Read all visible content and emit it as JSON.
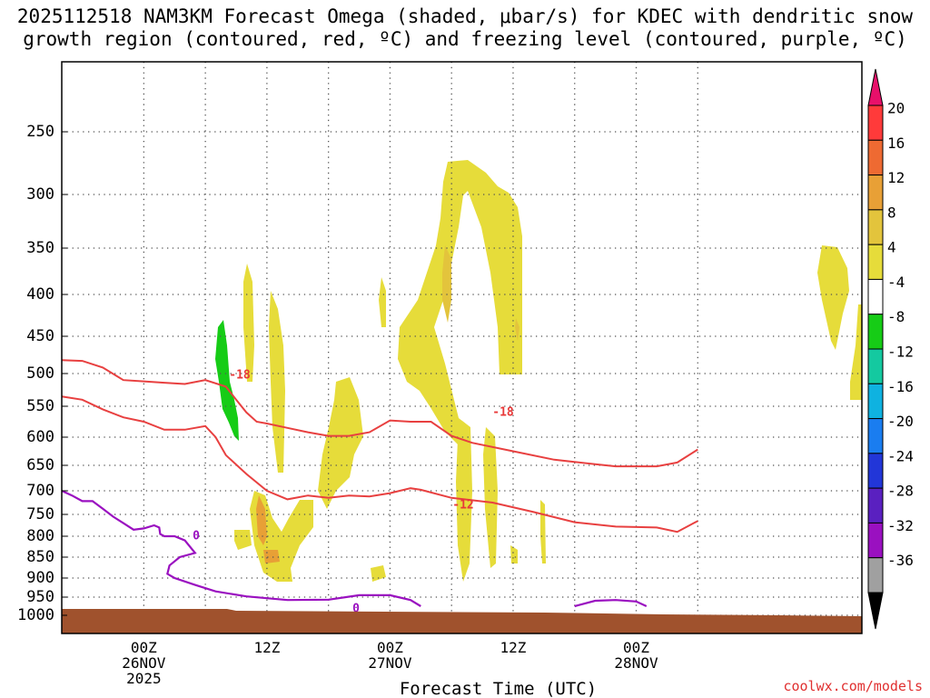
{
  "title": {
    "line1": "2025112518 NAM3KM Forecast Omega (shaded, μbar/s) for KDEC with dendritic snow",
    "line2": "growth region (contoured, red, ºC) and freezing level (contoured, purple, ºC)"
  },
  "credit": "coolwx.com/models",
  "chart_data": {
    "type": "heatmap",
    "xlabel": "Forecast Time (UTC)",
    "ylabel": "",
    "x_range_hours": [
      -8,
      70
    ],
    "y_range_hpa": [
      1030,
      200
    ],
    "x_ticks": [
      {
        "hour": 0,
        "lines": [
          "00Z",
          "26NOV",
          "2025"
        ]
      },
      {
        "hour": 12,
        "lines": [
          "12Z"
        ]
      },
      {
        "hour": 24,
        "lines": [
          "00Z",
          "27NOV"
        ]
      },
      {
        "hour": 36,
        "lines": [
          "12Z"
        ]
      },
      {
        "hour": 48,
        "lines": [
          "00Z",
          "28NOV"
        ]
      }
    ],
    "x_grid_hours": [
      0,
      6,
      12,
      18,
      24,
      30,
      36,
      42,
      48,
      54
    ],
    "y_ticks": [
      250,
      300,
      350,
      400,
      450,
      500,
      550,
      600,
      650,
      700,
      750,
      800,
      850,
      900,
      950,
      1000
    ],
    "colorbar": {
      "labels": [
        "20",
        "16",
        "12",
        "8",
        "4",
        "-4",
        "-8",
        "-12",
        "-16",
        "-20",
        "-24",
        "-28",
        "-32",
        "-36"
      ],
      "colors": [
        "#ff3a3a",
        "#ee6a32",
        "#e8a036",
        "#e3c43c",
        "#e6dc3a",
        "#ffffff",
        "#16cc16",
        "#14c9a0",
        "#0fb2e0",
        "#1a7df0",
        "#2236d8",
        "#5a20c0",
        "#9a10c0",
        "#a0a0a0"
      ],
      "top_arrow_color": "#e8106a",
      "bottom_arrow_color": "#000000"
    },
    "contour_labels": [
      {
        "text": "-18",
        "color": "#e83838"
      },
      {
        "text": "-18",
        "color": "#e83838"
      },
      {
        "text": "-12",
        "color": "#e83838"
      },
      {
        "text": "0",
        "color": "#9a10c0"
      },
      {
        "text": "0",
        "color": "#9a10c0"
      }
    ],
    "dgz_top_contour": [
      [
        -8,
        482
      ],
      [
        -6,
        483
      ],
      [
        -4,
        492
      ],
      [
        -2,
        510
      ],
      [
        0,
        512
      ],
      [
        2,
        514
      ],
      [
        4,
        516
      ],
      [
        6,
        510
      ],
      [
        8,
        520
      ],
      [
        9,
        540
      ],
      [
        10,
        560
      ],
      [
        11,
        575
      ],
      [
        12,
        578
      ],
      [
        14,
        585
      ],
      [
        16,
        592
      ],
      [
        18,
        598
      ],
      [
        20,
        598
      ],
      [
        22,
        592
      ],
      [
        24,
        573
      ],
      [
        26,
        575
      ],
      [
        28,
        575
      ],
      [
        30,
        598
      ],
      [
        32,
        610
      ],
      [
        36,
        625
      ],
      [
        40,
        640
      ],
      [
        44,
        648
      ],
      [
        46,
        652
      ],
      [
        48,
        652
      ],
      [
        50,
        652
      ],
      [
        52,
        645
      ],
      [
        54,
        622
      ]
    ],
    "dgz_bottom_contour": [
      [
        -8,
        535
      ],
      [
        -6,
        540
      ],
      [
        -4,
        555
      ],
      [
        -2,
        568
      ],
      [
        0,
        575
      ],
      [
        2,
        588
      ],
      [
        4,
        588
      ],
      [
        6,
        582
      ],
      [
        7,
        600
      ],
      [
        8,
        632
      ],
      [
        10,
        667
      ],
      [
        12,
        700
      ],
      [
        14,
        718
      ],
      [
        16,
        710
      ],
      [
        18,
        715
      ],
      [
        20,
        710
      ],
      [
        22,
        712
      ],
      [
        24,
        705
      ],
      [
        26,
        695
      ],
      [
        27,
        698
      ],
      [
        30,
        715
      ],
      [
        34,
        725
      ],
      [
        38,
        745
      ],
      [
        42,
        768
      ],
      [
        46,
        778
      ],
      [
        50,
        780
      ],
      [
        52,
        790
      ],
      [
        54,
        765
      ]
    ],
    "freezing_contour": [
      [
        -8,
        700
      ],
      [
        -7,
        710
      ],
      [
        -6,
        722
      ],
      [
        -5,
        722
      ],
      [
        -4,
        738
      ],
      [
        -3,
        755
      ],
      [
        -2,
        770
      ],
      [
        -1,
        785
      ],
      [
        0,
        782
      ],
      [
        1,
        775
      ],
      [
        1.5,
        780
      ],
      [
        1.6,
        795
      ],
      [
        2,
        800
      ],
      [
        3,
        800
      ],
      [
        4,
        810
      ],
      [
        5,
        840
      ],
      [
        3.5,
        850
      ],
      [
        2.5,
        870
      ],
      [
        2.3,
        890
      ],
      [
        3,
        900
      ],
      [
        5,
        918
      ],
      [
        7,
        935
      ],
      [
        10,
        948
      ],
      [
        14,
        958
      ],
      [
        18,
        957
      ],
      [
        21,
        945
      ],
      [
        24,
        945
      ],
      [
        26,
        958
      ],
      [
        27,
        975
      ]
    ],
    "freezing_contour2": [
      [
        42,
        975
      ],
      [
        44,
        960
      ],
      [
        46,
        958
      ],
      [
        48,
        962
      ],
      [
        49,
        975
      ]
    ],
    "omega_fields": [
      {
        "value": 4,
        "label": "upward 4-8"
      },
      {
        "value": 8,
        "label": "upward 8-12"
      },
      {
        "value": -4,
        "label": "downward -4 to -8"
      }
    ]
  }
}
